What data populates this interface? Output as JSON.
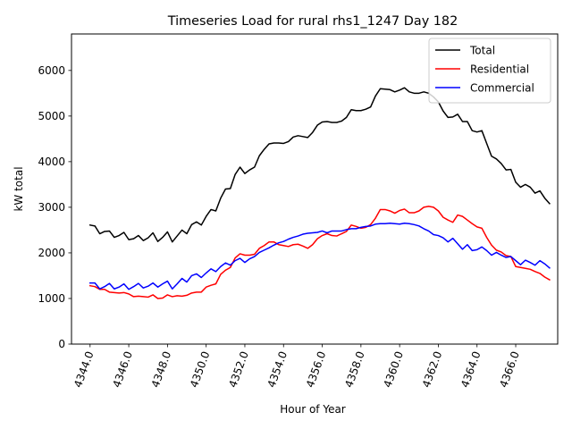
{
  "chart_data": {
    "type": "line",
    "title": "Timeseries Load for rural rhs1_1247  Day 182",
    "xlabel": "Hour of Year",
    "ylabel": "kW total",
    "xlim": [
      4343.04,
      4368.17
    ],
    "ylim": [
      0,
      6800
    ],
    "xticks": [
      4344,
      4346,
      4348,
      4350,
      4352,
      4354,
      4356,
      4358,
      4360,
      4362,
      4364,
      4366
    ],
    "xtick_labels": [
      "4344.0",
      "4346.0",
      "4348.0",
      "4350.0",
      "4352.0",
      "4354.0",
      "4356.0",
      "4358.0",
      "4360.0",
      "4362.0",
      "4364.0",
      "4366.0"
    ],
    "yticks": [
      0,
      1000,
      2000,
      3000,
      4000,
      5000,
      6000
    ],
    "ytick_labels": [
      "0",
      "1000",
      "2000",
      "3000",
      "4000",
      "5000",
      "6000"
    ],
    "legend_position": "top-right",
    "x_start": 4344.0,
    "x_step": 0.25,
    "series": [
      {
        "name": "Total",
        "color": "#000000",
        "values": [
          2610,
          2590,
          2420,
          2470,
          2480,
          2340,
          2380,
          2450,
          2290,
          2310,
          2380,
          2270,
          2330,
          2440,
          2250,
          2340,
          2460,
          2240,
          2370,
          2500,
          2420,
          2620,
          2680,
          2610,
          2800,
          2950,
          2920,
          3200,
          3400,
          3410,
          3720,
          3880,
          3740,
          3820,
          3880,
          4130,
          4270,
          4390,
          4410,
          4410,
          4400,
          4440,
          4540,
          4570,
          4550,
          4530,
          4640,
          4800,
          4870,
          4880,
          4860,
          4860,
          4890,
          4970,
          5140,
          5120,
          5120,
          5150,
          5200,
          5440,
          5600,
          5590,
          5580,
          5530,
          5570,
          5620,
          5530,
          5500,
          5500,
          5530,
          5500,
          5420,
          5310,
          5110,
          4970,
          4980,
          5040,
          4880,
          4880,
          4680,
          4650,
          4680,
          4400,
          4120,
          4060,
          3960,
          3820,
          3830,
          3550,
          3440,
          3500,
          3440,
          3310,
          3360,
          3200,
          3080
        ]
      },
      {
        "name": "Residential",
        "color": "#ff0000",
        "values": [
          1280,
          1260,
          1200,
          1200,
          1140,
          1130,
          1120,
          1130,
          1100,
          1040,
          1050,
          1040,
          1030,
          1080,
          1000,
          1010,
          1080,
          1040,
          1060,
          1050,
          1070,
          1120,
          1140,
          1140,
          1250,
          1290,
          1320,
          1530,
          1620,
          1680,
          1890,
          1980,
          1950,
          1950,
          1970,
          2100,
          2160,
          2240,
          2240,
          2180,
          2160,
          2140,
          2180,
          2190,
          2150,
          2100,
          2180,
          2310,
          2380,
          2420,
          2380,
          2370,
          2420,
          2470,
          2610,
          2580,
          2540,
          2560,
          2620,
          2760,
          2950,
          2950,
          2920,
          2870,
          2930,
          2960,
          2880,
          2880,
          2920,
          3000,
          3020,
          3000,
          2920,
          2780,
          2720,
          2670,
          2830,
          2800,
          2720,
          2640,
          2570,
          2540,
          2340,
          2170,
          2060,
          2020,
          1940,
          1920,
          1700,
          1680,
          1660,
          1640,
          1590,
          1550,
          1470,
          1410
        ]
      },
      {
        "name": "Commercial",
        "color": "#0000ff",
        "values": [
          1340,
          1340,
          1210,
          1260,
          1330,
          1210,
          1250,
          1320,
          1200,
          1260,
          1330,
          1230,
          1270,
          1340,
          1250,
          1320,
          1380,
          1210,
          1320,
          1440,
          1360,
          1500,
          1540,
          1460,
          1560,
          1650,
          1590,
          1700,
          1780,
          1730,
          1830,
          1880,
          1790,
          1870,
          1920,
          2010,
          2060,
          2110,
          2170,
          2220,
          2250,
          2300,
          2340,
          2370,
          2410,
          2430,
          2440,
          2450,
          2480,
          2440,
          2480,
          2480,
          2480,
          2510,
          2530,
          2530,
          2560,
          2580,
          2590,
          2630,
          2640,
          2640,
          2650,
          2640,
          2630,
          2650,
          2640,
          2620,
          2590,
          2530,
          2480,
          2400,
          2380,
          2330,
          2240,
          2320,
          2200,
          2080,
          2180,
          2050,
          2070,
          2130,
          2050,
          1950,
          2010,
          1950,
          1900,
          1920,
          1830,
          1740,
          1840,
          1790,
          1730,
          1830,
          1760,
          1670
        ]
      }
    ]
  }
}
